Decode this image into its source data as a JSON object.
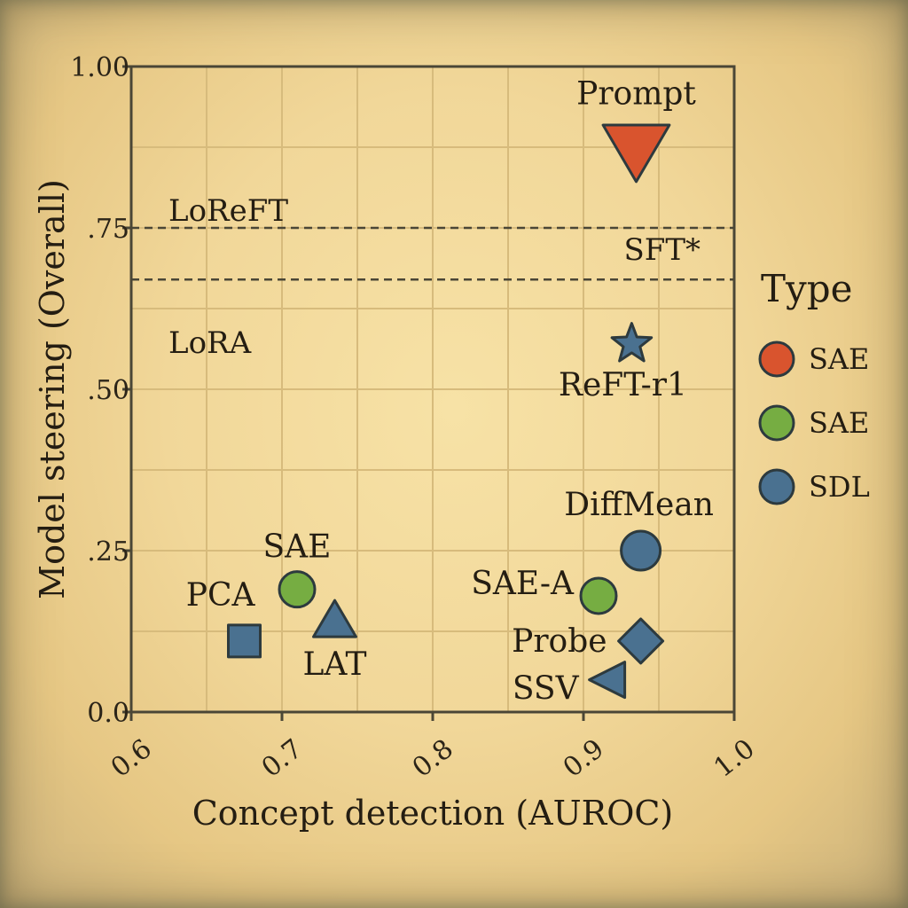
{
  "chart_data": {
    "type": "scatter",
    "xlabel": "Concept detection (AUROC)",
    "ylabel": "Model steering (Overall)",
    "xlim": [
      0.6,
      1.0
    ],
    "ylim": [
      0.0,
      1.0
    ],
    "x_ticks": [
      {
        "value": 0.6,
        "label": "0.6"
      },
      {
        "value": 0.7,
        "label": "0.7"
      },
      {
        "value": 0.8,
        "label": "0.8"
      },
      {
        "value": 0.9,
        "label": "0.9"
      },
      {
        "value": 1.0,
        "label": "1.0"
      }
    ],
    "y_ticks": [
      {
        "value": 0.0,
        "label": "0.0"
      },
      {
        "value": 0.25,
        "label": ".25"
      },
      {
        "value": 0.5,
        "label": ".50"
      },
      {
        "value": 0.75,
        "label": ".75"
      },
      {
        "value": 1.0,
        "label": "1.00"
      }
    ],
    "grid": true,
    "reference_lines": [
      {
        "name": "LoReFT",
        "y": 0.75
      },
      {
        "name": "SFT*",
        "y": 0.67
      },
      {
        "name": "LoRA",
        "y": 0.57
      }
    ],
    "points": [
      {
        "label": "Prompt",
        "x": 0.935,
        "y": 0.87,
        "marker": "triangle-down",
        "color": "#d9542e"
      },
      {
        "label": "ReFT-r1",
        "x": 0.932,
        "y": 0.57,
        "marker": "star",
        "color": "#4a7190"
      },
      {
        "label": "DiffMean",
        "x": 0.938,
        "y": 0.25,
        "marker": "circle",
        "color": "#4a7190"
      },
      {
        "label": "SAE-A",
        "x": 0.91,
        "y": 0.18,
        "marker": "circle",
        "color": "#76ad42"
      },
      {
        "label": "Probe",
        "x": 0.938,
        "y": 0.11,
        "marker": "diamond",
        "color": "#4a7190"
      },
      {
        "label": "SSV",
        "x": 0.918,
        "y": 0.05,
        "marker": "triangle-left",
        "color": "#4a7190"
      },
      {
        "label": "SAE",
        "x": 0.71,
        "y": 0.19,
        "marker": "circle",
        "color": "#76ad42"
      },
      {
        "label": "PCA",
        "x": 0.675,
        "y": 0.11,
        "marker": "square",
        "color": "#4a7190"
      },
      {
        "label": "LAT",
        "x": 0.735,
        "y": 0.14,
        "marker": "triangle-up",
        "color": "#4a7190"
      }
    ],
    "legend": {
      "title": "Type",
      "placement": "right",
      "entries": [
        {
          "label": "SAE",
          "color": "#d9542e"
        },
        {
          "label": "SAE",
          "color": "#76ad42"
        },
        {
          "label": "SDL",
          "color": "#4a7190"
        }
      ]
    }
  }
}
